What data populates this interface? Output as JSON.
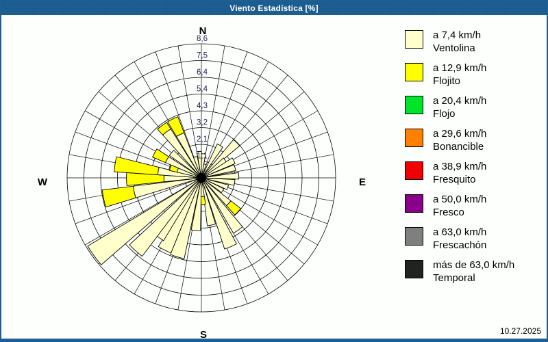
{
  "window": {
    "title": "Viento Estadística [%]",
    "date": "10.27.2025"
  },
  "compass": {
    "north": "N",
    "east": "E",
    "south": "S",
    "west": "W"
  },
  "colors": {
    "titlebar": "#1d5f92",
    "grid": "#000000",
    "tick_label": "#1c1c50",
    "cream": "#ffffcc",
    "yellow": "#ffff00",
    "green": "#00e42a",
    "orange": "#ff8000",
    "red": "#f00000",
    "purple": "#8b008b",
    "gray": "#7f7f7f",
    "dark": "#222222",
    "center_dot": "#000000"
  },
  "legend": {
    "items": [
      {
        "color_key": "cream",
        "speed": "a 7,4 km/h",
        "name": "Ventolina"
      },
      {
        "color_key": "yellow",
        "speed": "a 12,9 km/h",
        "name": "Flojito"
      },
      {
        "color_key": "green",
        "speed": "a 20,4 km/h",
        "name": "Flojo"
      },
      {
        "color_key": "orange",
        "speed": "a 29,6 km/h",
        "name": "Bonancible"
      },
      {
        "color_key": "red",
        "speed": "a 38,9 km/h",
        "name": "Fresquito"
      },
      {
        "color_key": "purple",
        "speed": "a 50,0 km/h",
        "name": "Fresco"
      },
      {
        "color_key": "gray",
        "speed": "a 63,0 km/h",
        "name": "Frescachón"
      },
      {
        "color_key": "dark",
        "speed": "más de 63,0 km/h",
        "name": "Temporal"
      }
    ]
  },
  "chart_data": {
    "type": "windrose-polar-bar",
    "title": "Viento Estadística [%]",
    "units": "%",
    "direction_convention": "compass degrees, N=0, E=90, S=180, W=270",
    "sector_width_deg": 10,
    "max": 8.6,
    "rings": [
      1.1,
      2.1,
      3.2,
      4.3,
      5.4,
      6.4,
      7.5,
      8.6
    ],
    "ring_labels": [
      "1,1",
      "2,1",
      "3,2",
      "4,3",
      "5,4",
      "6,4",
      "7,5",
      "8,6"
    ],
    "series": [
      {
        "name": "Ventolina (a 7,4 km/h)",
        "color_key": "cream"
      },
      {
        "name": "Flojito (a 12,9 km/h)",
        "color_key": "yellow"
      }
    ],
    "petals": [
      {
        "dir": 355,
        "ventolina": 1.7,
        "flojito_total": null
      },
      {
        "dir": 5,
        "ventolina": 1.55,
        "flojito_total": null
      },
      {
        "dir": 15,
        "ventolina": 0.9,
        "flojito_total": null
      },
      {
        "dir": 30,
        "ventolina": 2.4,
        "flojito_total": null
      },
      {
        "dir": 45,
        "ventolina": 3.2,
        "flojito_total": null
      },
      {
        "dir": 53,
        "ventolina": 1.9,
        "flojito_total": null
      },
      {
        "dir": 62,
        "ventolina": 2.35,
        "flojito_total": null
      },
      {
        "dir": 73,
        "ventolina": 2.25,
        "flojito_total": null
      },
      {
        "dir": 87,
        "ventolina": 2.4,
        "flojito_total": null
      },
      {
        "dir": 98,
        "ventolina": 2.15,
        "flojito_total": null
      },
      {
        "dir": 110,
        "ventolina": 1.8,
        "flojito_total": null
      },
      {
        "dir": 121,
        "ventolina": 1.6,
        "flojito_total": null
      },
      {
        "dir": 133,
        "ventolina": 2.4,
        "flojito_total": 3.2
      },
      {
        "dir": 145,
        "ventolina": 4.1,
        "flojito_total": null
      },
      {
        "dir": 157,
        "ventolina": 4.8,
        "flojito_total": null
      },
      {
        "dir": 168,
        "ventolina": 3.1,
        "flojito_total": null
      },
      {
        "dir": 176,
        "ventolina": 1.2,
        "flojito_total": 1.7
      },
      {
        "dir": 186,
        "ventolina": 3.4,
        "flojito_total": null
      },
      {
        "dir": 197,
        "ventolina": 5.3,
        "flojito_total": null
      },
      {
        "dir": 207,
        "ventolina": 5.2,
        "flojito_total": null
      },
      {
        "dir": 216,
        "ventolina": 4.7,
        "flojito_total": null
      },
      {
        "dir": 222,
        "ventolina": 6.3,
        "flojito_total": null
      },
      {
        "dir": 234,
        "ventolina": 8.5,
        "flojito_total": null
      },
      {
        "dir": 258,
        "ventolina": 4.4,
        "flojito_total": 6.4
      },
      {
        "dir": 269,
        "ventolina": 2.4,
        "flojito_total": 4.8
      },
      {
        "dir": 279,
        "ventolina": 2.8,
        "flojito_total": 5.6
      },
      {
        "dir": 288,
        "ventolina": 1.6,
        "flojito_total": 2.1
      },
      {
        "dir": 298,
        "ventolina": 2.5,
        "flojito_total": 3.4
      },
      {
        "dir": 310,
        "ventolina": 2.5,
        "flojito_total": null
      },
      {
        "dir": 323,
        "ventolina": 3.7,
        "flojito_total": 4.2
      },
      {
        "dir": 334,
        "ventolina": 3.1,
        "flojito_total": 4.2
      },
      {
        "dir": 344,
        "ventolina": 1.4,
        "flojito_total": null
      }
    ]
  }
}
